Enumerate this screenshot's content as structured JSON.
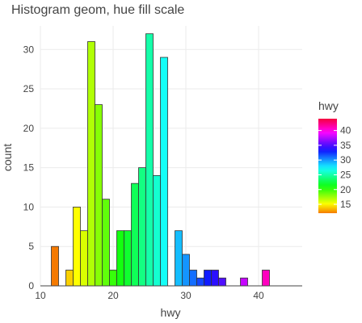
{
  "chart_data": {
    "type": "bar",
    "title": "Histogram geom, hue fill scale",
    "xlabel": "hwy",
    "ylabel": "count",
    "xlim": [
      10,
      46
    ],
    "ylim": [
      0,
      33
    ],
    "x_ticks": [
      "10",
      "20",
      "30",
      "40"
    ],
    "y_ticks": [
      "0",
      "5",
      "10",
      "15",
      "20",
      "25",
      "30"
    ],
    "grid": true,
    "bin_width": 1,
    "bins": [
      {
        "x": 12,
        "count": 5
      },
      {
        "x": 13,
        "count": 0
      },
      {
        "x": 14,
        "count": 2
      },
      {
        "x": 15,
        "count": 10
      },
      {
        "x": 16,
        "count": 7
      },
      {
        "x": 17,
        "count": 31
      },
      {
        "x": 18,
        "count": 23
      },
      {
        "x": 19,
        "count": 11
      },
      {
        "x": 20,
        "count": 2
      },
      {
        "x": 21,
        "count": 7
      },
      {
        "x": 22,
        "count": 7
      },
      {
        "x": 23,
        "count": 13
      },
      {
        "x": 24,
        "count": 15
      },
      {
        "x": 25,
        "count": 32
      },
      {
        "x": 26,
        "count": 14
      },
      {
        "x": 27,
        "count": 29
      },
      {
        "x": 28,
        "count": 0
      },
      {
        "x": 29,
        "count": 7
      },
      {
        "x": 30,
        "count": 4
      },
      {
        "x": 31,
        "count": 2
      },
      {
        "x": 32,
        "count": 1
      },
      {
        "x": 33,
        "count": 2
      },
      {
        "x": 34,
        "count": 2
      },
      {
        "x": 35,
        "count": 1
      },
      {
        "x": 36,
        "count": 0
      },
      {
        "x": 37,
        "count": 0
      },
      {
        "x": 38,
        "count": 1
      },
      {
        "x": 39,
        "count": 0
      },
      {
        "x": 40,
        "count": 0
      },
      {
        "x": 41,
        "count": 2
      }
    ],
    "legend": {
      "title": "hwy",
      "placement": "right",
      "ticks": [
        "40",
        "35",
        "30",
        "25",
        "20",
        "15"
      ],
      "range": [
        12,
        44
      ]
    }
  }
}
